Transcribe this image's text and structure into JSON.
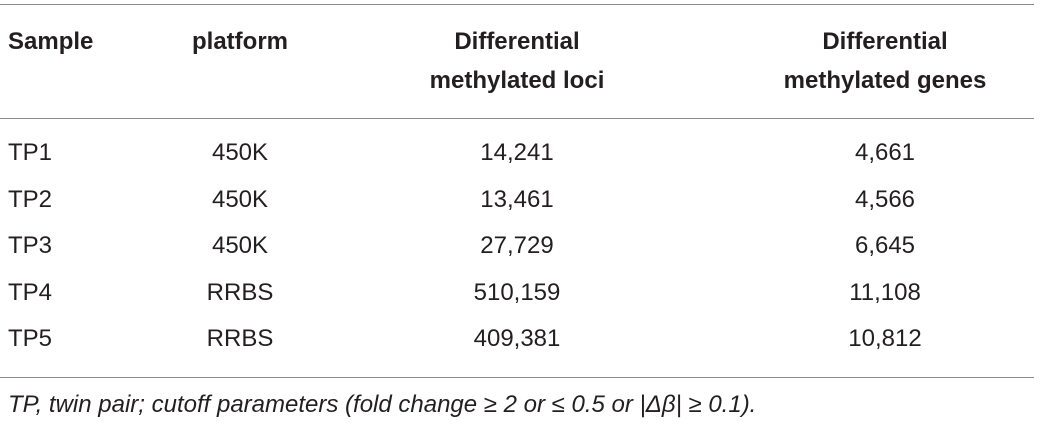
{
  "table": {
    "headers": [
      [
        "Sample"
      ],
      [
        "platform"
      ],
      [
        "Differential",
        "methylated loci"
      ],
      [
        "Differential",
        "methylated genes"
      ]
    ],
    "rows": [
      [
        "TP1",
        "450K",
        "14,241",
        "4,661"
      ],
      [
        "TP2",
        "450K",
        "13,461",
        "4,566"
      ],
      [
        "TP3",
        "450K",
        "27,729",
        "6,645"
      ],
      [
        "TP4",
        "RRBS",
        "510,159",
        "11,108"
      ],
      [
        "TP5",
        "RRBS",
        "409,381",
        "10,812"
      ]
    ],
    "footnote": "TP, twin pair; cutoff parameters (fold change ≥ 2 or ≤ 0.5 or |Δβ| ≥ 0.1)."
  }
}
